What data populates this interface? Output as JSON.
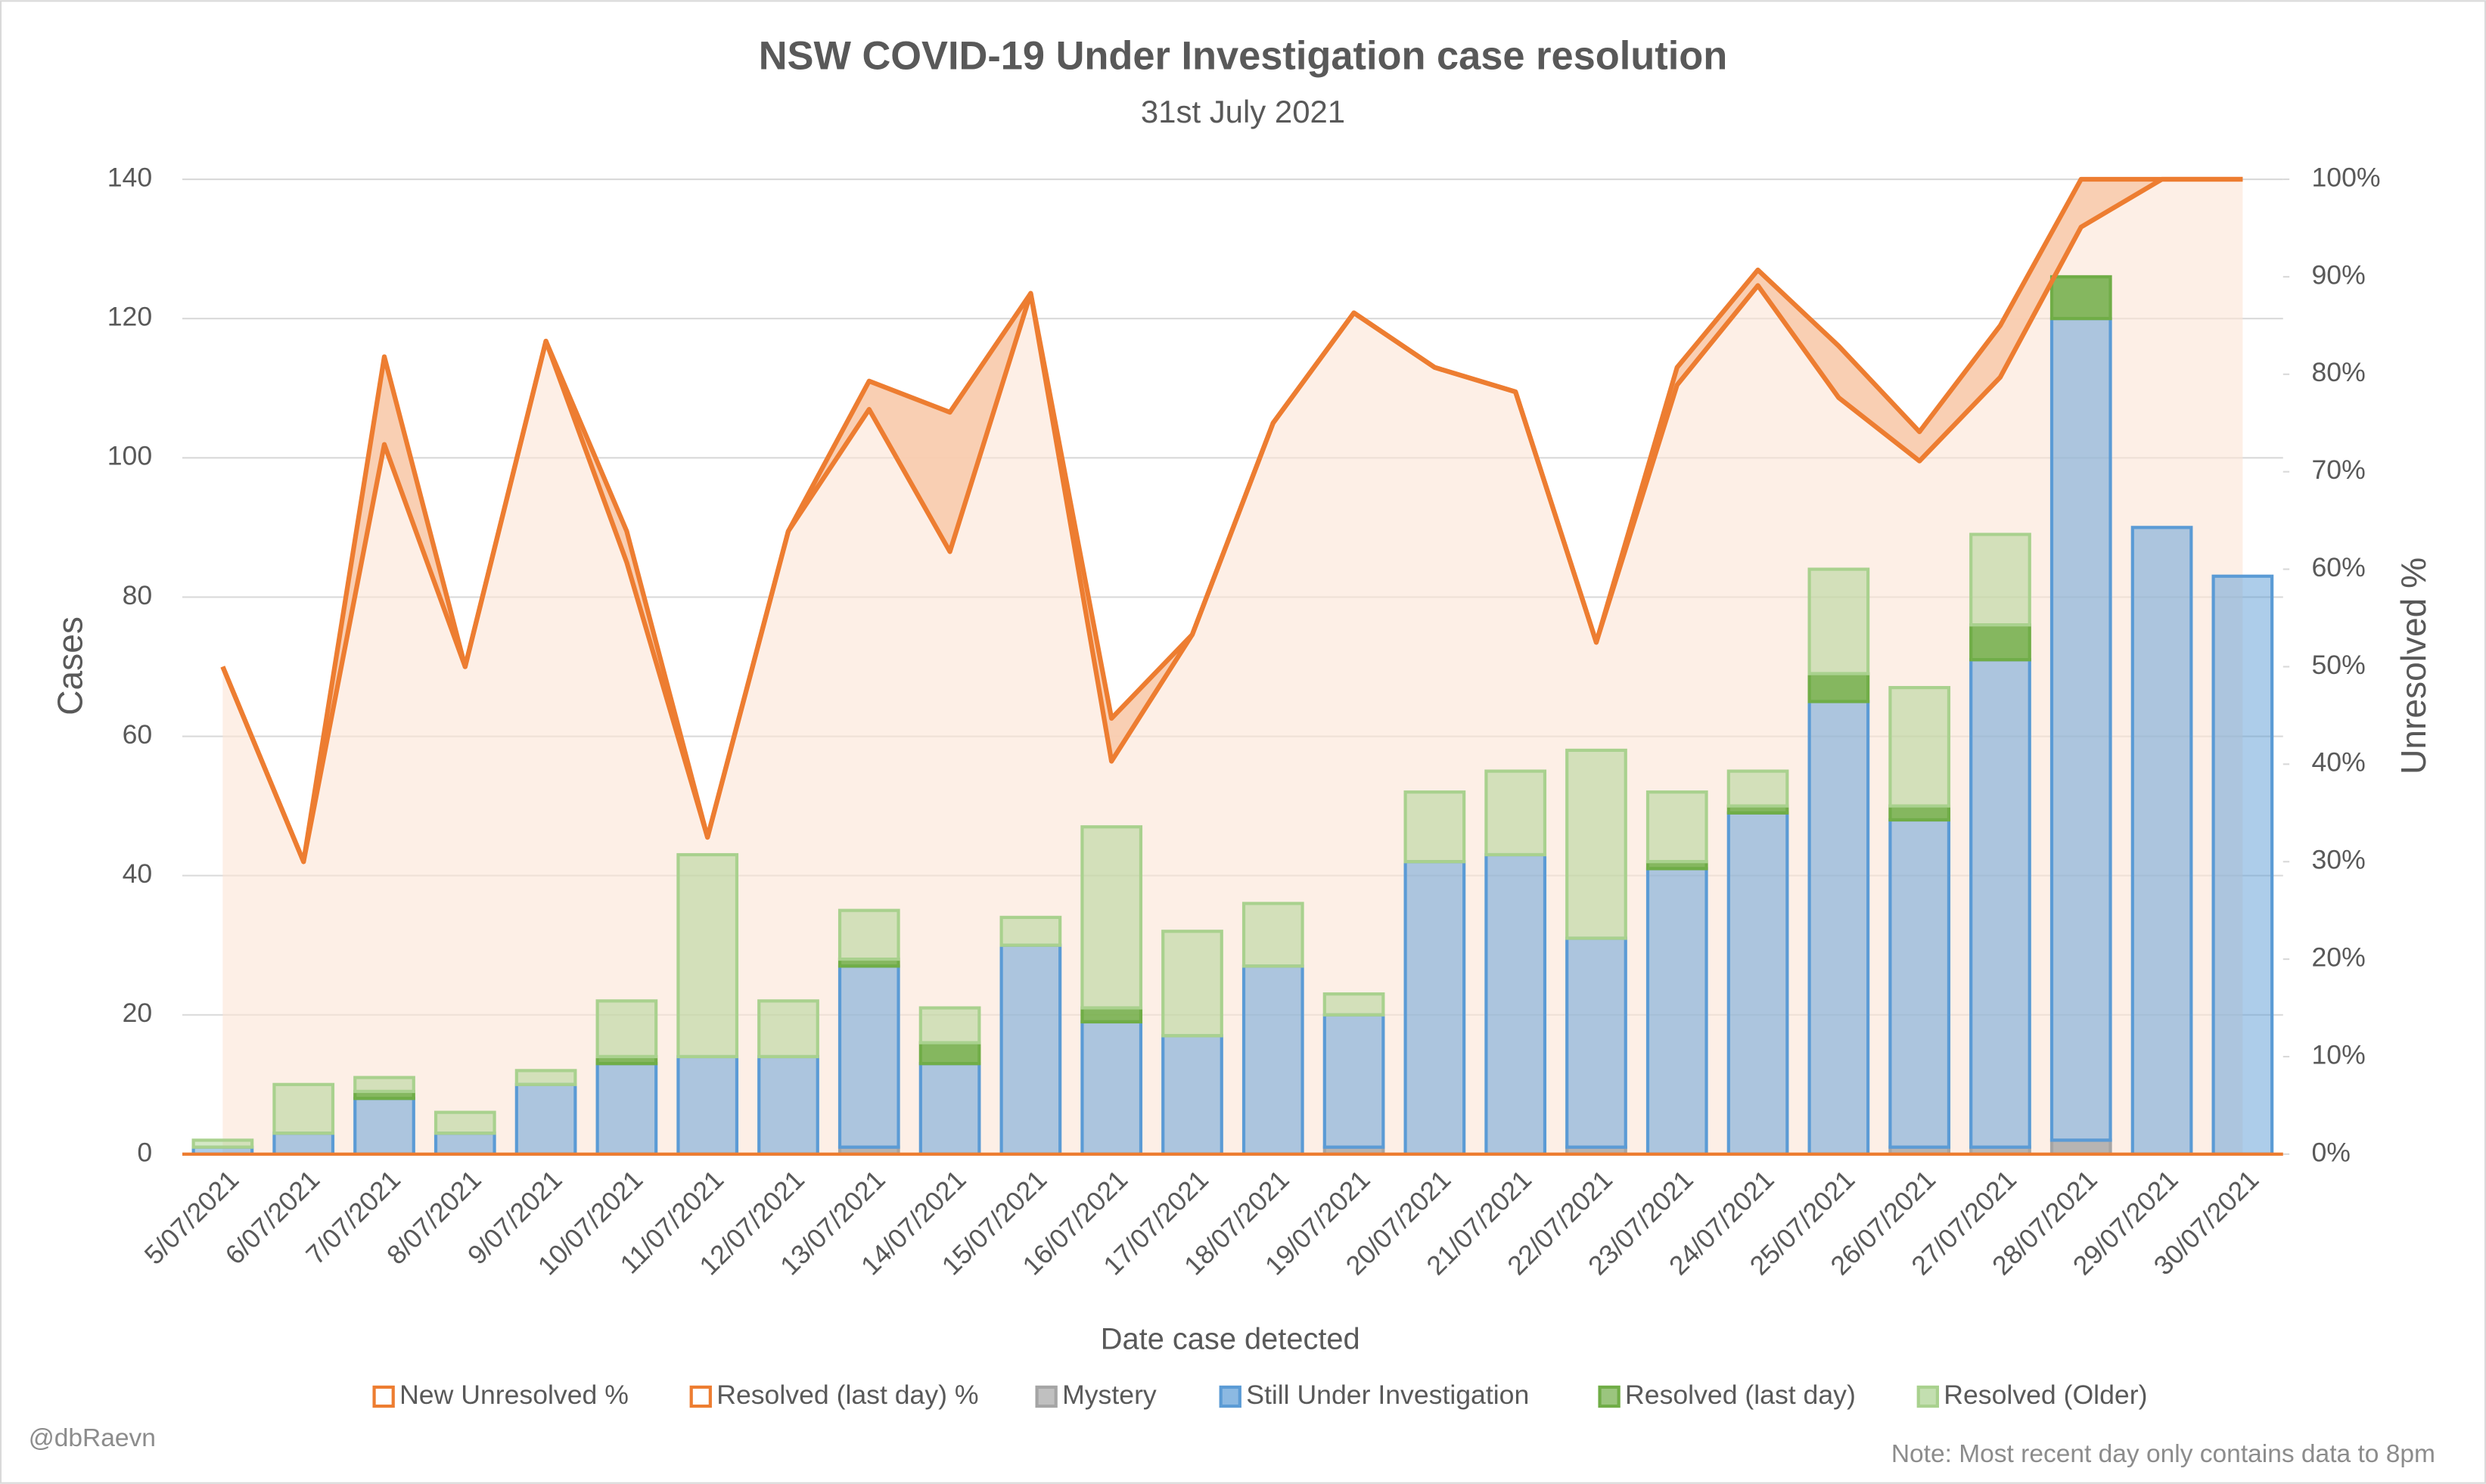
{
  "chart_data": {
    "type": "bar",
    "title": "NSW COVID-19 Under Investigation case resolution",
    "subtitle": "31st July 2021",
    "x_label": "Date case detected",
    "y_label": "Cases",
    "y2_label": "Unresolved %",
    "credit": "@dbRaevn",
    "note": "Note: Most recent day only contains data to 8pm",
    "categories": [
      "5/07/2021",
      "6/07/2021",
      "7/07/2021",
      "8/07/2021",
      "9/07/2021",
      "10/07/2021",
      "11/07/2021",
      "12/07/2021",
      "13/07/2021",
      "14/07/2021",
      "15/07/2021",
      "16/07/2021",
      "17/07/2021",
      "18/07/2021",
      "19/07/2021",
      "20/07/2021",
      "21/07/2021",
      "22/07/2021",
      "23/07/2021",
      "24/07/2021",
      "25/07/2021",
      "26/07/2021",
      "27/07/2021",
      "28/07/2021",
      "29/07/2021",
      "30/07/2021"
    ],
    "ylim": [
      0,
      140
    ],
    "yticks": [
      0,
      20,
      40,
      60,
      80,
      100,
      120,
      140
    ],
    "y2lim": [
      0,
      100
    ],
    "y2ticks": [
      {
        "value": 0,
        "label": "0%"
      },
      {
        "value": 10,
        "label": "10%"
      },
      {
        "value": 20,
        "label": "20%"
      },
      {
        "value": 30,
        "label": "30%"
      },
      {
        "value": 40,
        "label": "40%"
      },
      {
        "value": 50,
        "label": "50%"
      },
      {
        "value": 60,
        "label": "60%"
      },
      {
        "value": 70,
        "label": "70%"
      },
      {
        "value": 80,
        "label": "80%"
      },
      {
        "value": 90,
        "label": "90%"
      },
      {
        "value": 100,
        "label": "100%"
      }
    ],
    "grid": true,
    "legend": "bottom",
    "series": [
      {
        "name": "New Unresolved %",
        "type": "line",
        "axis": "y2",
        "color": "#ed7d31",
        "values": [
          50,
          30,
          72.8,
          50,
          83.4,
          60.7,
          32.5,
          63.9,
          76.4,
          61.8,
          88.3,
          40.3,
          53.3,
          75,
          86.3,
          80.7,
          78.2,
          52.5,
          78.9,
          89.1,
          77.6,
          71.1,
          79.7,
          95.1,
          100,
          100
        ]
      },
      {
        "name": "Resolved (last day) %",
        "type": "line",
        "axis": "y2",
        "color": "#ed7d31",
        "values": [
          50,
          30,
          81.8,
          50,
          83.4,
          63.9,
          32.5,
          63.9,
          79.3,
          76.1,
          88.3,
          44.7,
          53.3,
          75,
          86.3,
          80.7,
          78.2,
          52.5,
          80.7,
          90.7,
          82.9,
          74.1,
          85,
          100,
          100,
          100
        ]
      },
      {
        "name": "Mystery",
        "color": "#a5a5a5",
        "values": [
          0,
          0,
          0,
          0,
          0,
          0,
          0,
          0,
          1,
          0,
          0,
          0,
          0,
          0,
          1,
          0,
          0,
          1,
          0,
          0,
          0,
          1,
          1,
          2,
          0,
          0
        ]
      },
      {
        "name": "Still Under Investigation",
        "color": "#5b9bd5",
        "values": [
          1,
          3,
          8,
          3,
          10,
          13,
          14,
          14,
          26,
          13,
          30,
          19,
          17,
          27,
          19,
          42,
          43,
          30,
          41,
          49,
          65,
          47,
          70,
          118,
          90,
          83
        ]
      },
      {
        "name": "Resolved (last day)",
        "color": "#70ad47",
        "values": [
          0,
          0,
          1,
          0,
          0,
          1,
          0,
          0,
          1,
          3,
          0,
          2,
          0,
          0,
          0,
          0,
          0,
          0,
          1,
          1,
          4,
          2,
          5,
          6,
          0,
          0
        ]
      },
      {
        "name": "Resolved (Older)",
        "color": "#a9d18e",
        "values": [
          1,
          7,
          2,
          3,
          2,
          8,
          29,
          8,
          7,
          5,
          4,
          26,
          15,
          9,
          3,
          10,
          12,
          27,
          10,
          5,
          15,
          17,
          13,
          0,
          0,
          0
        ]
      }
    ]
  }
}
